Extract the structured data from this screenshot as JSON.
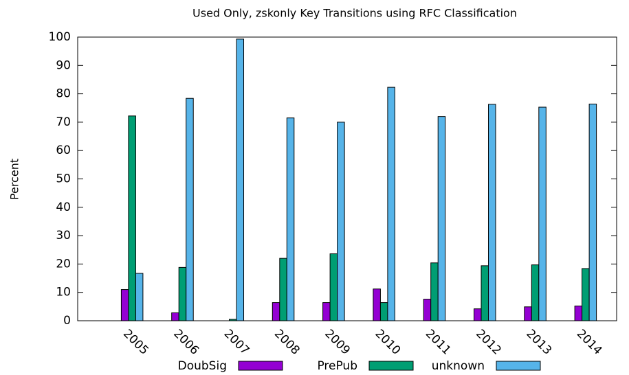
{
  "chart_data": {
    "type": "bar",
    "title": "Used Only, zskonly Key Transitions using RFC Classification",
    "ylabel": "Percent",
    "categories": [
      "2005",
      "2006",
      "2007",
      "2008",
      "2009",
      "2010",
      "2011",
      "2012",
      "2013",
      "2014"
    ],
    "series": [
      {
        "name": "DoubSig",
        "color": "#9400d3",
        "values": [
          11,
          2.8,
          0,
          6.4,
          6.4,
          11.2,
          7.6,
          4.2,
          4.9,
          5.2
        ]
      },
      {
        "name": "PrePub",
        "color": "#009e73",
        "values": [
          72.2,
          18.8,
          0.5,
          22,
          23.6,
          6.4,
          20.4,
          19.4,
          19.7,
          18.4
        ]
      },
      {
        "name": "unknown",
        "color": "#56b4e9",
        "values": [
          16.7,
          78.4,
          99.3,
          71.5,
          70,
          82.3,
          72,
          76.3,
          75.3,
          76.4
        ]
      }
    ],
    "ylim": [
      0,
      100
    ],
    "yticks": [
      0,
      10,
      20,
      30,
      40,
      50,
      60,
      70,
      80,
      90,
      100
    ],
    "legend": "bottom"
  }
}
